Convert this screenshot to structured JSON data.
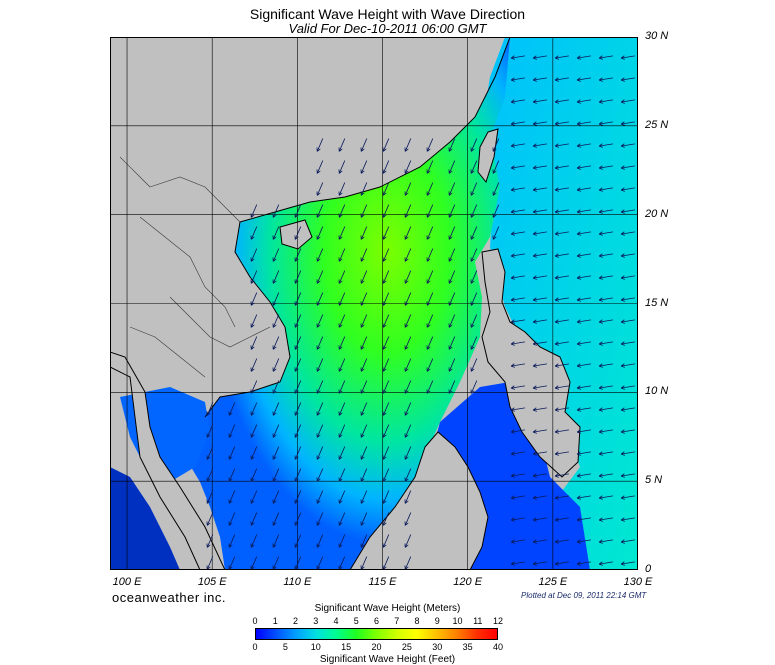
{
  "title": "Significant Wave Height with Wave Direction",
  "subtitle": "Valid For Dec-10-2011 06:00 GMT",
  "brand": "oceanweather inc.",
  "plotted": "Plotted at Dec 09, 2011 22:14 GMT",
  "map": {
    "lat_labels": [
      "30 N",
      "25 N",
      "20 N",
      "15 N",
      "10 N",
      "5 N",
      "0"
    ],
    "lon_labels": [
      "100 E",
      "105 E",
      "110 E",
      "115 E",
      "120 E",
      "125 E",
      "130 E"
    ],
    "extent": {
      "lon": [
        99,
        130
      ],
      "lat": [
        0,
        30
      ]
    },
    "land_color": "#c0c0c0",
    "grid_color": "#000000",
    "arrow_color": "#0a1a5a"
  },
  "colorbar": {
    "meters_title": "Significant Wave Height (Meters)",
    "feet_title": "Significant Wave Height (Feet)",
    "meters_ticks": [
      "0",
      "1",
      "2",
      "3",
      "4",
      "5",
      "6",
      "7",
      "8",
      "9",
      "10",
      "11",
      "12"
    ],
    "feet_ticks": [
      "0",
      "5",
      "10",
      "15",
      "20",
      "25",
      "30",
      "35",
      "40"
    ],
    "colors": [
      "#0000ff",
      "#0050ff",
      "#00a0ff",
      "#00e0e0",
      "#00ff90",
      "#20ff20",
      "#80ff00",
      "#d0ff00",
      "#ffff00",
      "#ffc000",
      "#ff8000",
      "#ff3000",
      "#ff0000"
    ]
  }
}
